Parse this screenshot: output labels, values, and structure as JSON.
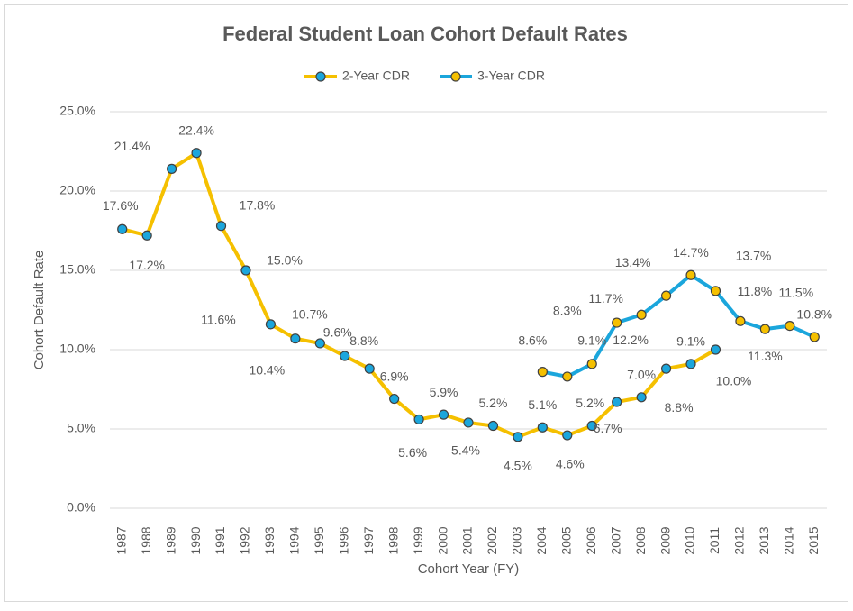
{
  "chart_data": {
    "type": "line",
    "title": "Federal Student Loan Cohort Default Rates",
    "x_label": "Cohort Year (FY)",
    "y_label": "Cohort Default Rate",
    "categories": [
      "1987",
      "1988",
      "1989",
      "1990",
      "1991",
      "1992",
      "1993",
      "1994",
      "1995",
      "1996",
      "1997",
      "1998",
      "1999",
      "2000",
      "2001",
      "2002",
      "2003",
      "2004",
      "2005",
      "2006",
      "2007",
      "2008",
      "2009",
      "2010",
      "2011",
      "2012",
      "2013",
      "2014",
      "2015"
    ],
    "ylim": [
      0,
      25
    ],
    "yticks": [
      {
        "value": 0,
        "label": "0.0%"
      },
      {
        "value": 5,
        "label": "5.0%"
      },
      {
        "value": 10,
        "label": "10.0%"
      },
      {
        "value": 15,
        "label": "15.0%"
      },
      {
        "value": 20,
        "label": "20.0%"
      },
      {
        "value": 25,
        "label": "25.0%"
      }
    ],
    "grid": true,
    "legend": "top",
    "series": [
      {
        "name": "2-Year CDR",
        "color": "#f5c000",
        "marker_color": "#1ba6dc",
        "values": [
          17.6,
          17.2,
          21.4,
          22.4,
          17.8,
          15.0,
          11.6,
          10.7,
          10.4,
          9.6,
          8.8,
          6.9,
          5.6,
          5.9,
          5.4,
          5.2,
          4.5,
          5.1,
          4.6,
          5.2,
          6.7,
          7.0,
          8.8,
          9.1,
          10.0,
          null,
          null,
          null,
          null
        ],
        "value_labels": [
          "17.6%",
          "17.2%",
          "21.4%",
          "22.4%",
          "17.8%",
          "15.0%",
          "11.6%",
          "10.7%",
          "10.4%",
          "9.6%",
          "8.8%",
          "6.9%",
          "5.6%",
          "5.9%",
          "5.4%",
          "5.2%",
          "4.5%",
          "5.1%",
          "4.6%",
          "5.2%",
          "6.7%",
          "7.0%",
          "8.8%",
          "9.1%",
          "10.0%",
          null,
          null,
          null,
          null
        ]
      },
      {
        "name": "3-Year CDR",
        "color": "#1ba6dc",
        "marker_color": "#f5c000",
        "values": [
          null,
          null,
          null,
          null,
          null,
          null,
          null,
          null,
          null,
          null,
          null,
          null,
          null,
          null,
          null,
          null,
          null,
          8.6,
          8.3,
          9.1,
          11.7,
          12.2,
          13.4,
          14.7,
          13.7,
          11.8,
          11.3,
          11.5,
          10.8
        ],
        "value_labels": [
          null,
          null,
          null,
          null,
          null,
          null,
          null,
          null,
          null,
          null,
          null,
          null,
          null,
          null,
          null,
          null,
          null,
          "8.6%",
          "8.3%",
          "9.1%",
          "11.7%",
          "12.2%",
          "13.4%",
          "14.7%",
          "13.7%",
          "11.8%",
          "11.3%",
          "11.5%",
          "10.8%"
        ]
      }
    ]
  }
}
